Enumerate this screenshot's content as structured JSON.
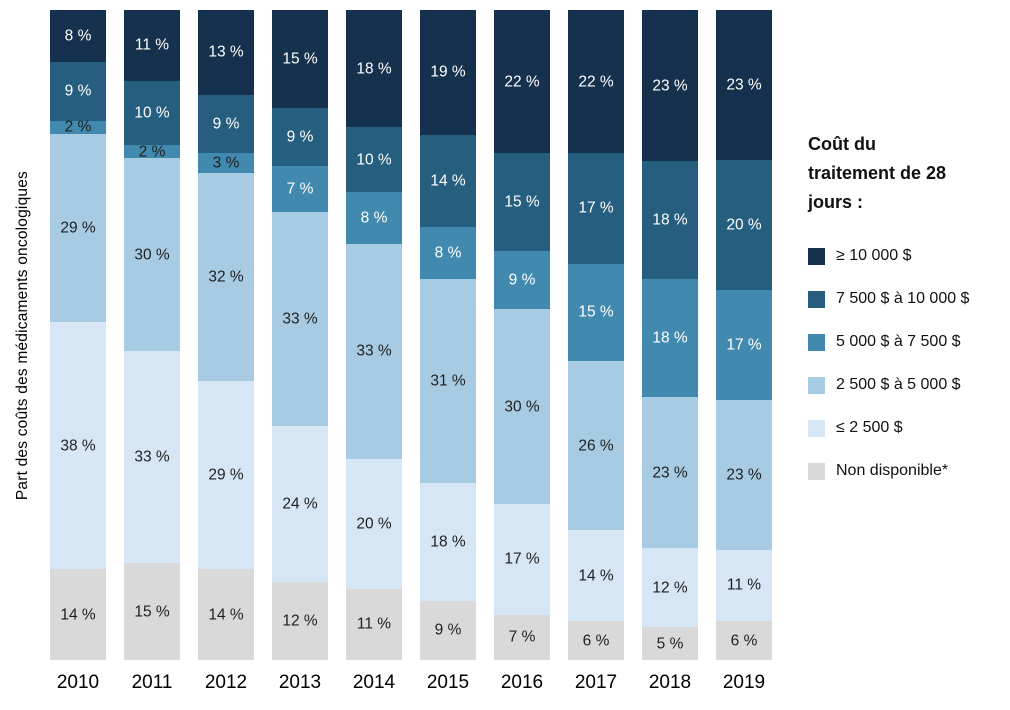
{
  "chart_data": {
    "type": "bar",
    "stacked": true,
    "title": "",
    "ylabel": "Part des coûts des médicaments oncologiques",
    "legend_title": "Coût du traitement de 28 jours :",
    "legend_position": "right",
    "value_suffix": " %",
    "grid": false,
    "ylim": [
      0,
      100
    ],
    "categories": [
      "2010",
      "2011",
      "2012",
      "2013",
      "2014",
      "2015",
      "2016",
      "2017",
      "2018",
      "2019"
    ],
    "series": [
      {
        "name": "≥ 10 000 $",
        "color": "#16314d",
        "label_color": "#ffffff",
        "values": [
          8,
          11,
          13,
          15,
          18,
          19,
          22,
          22,
          23,
          23
        ]
      },
      {
        "name": "7 500 $ à 10 000 $",
        "color": "#255e7e",
        "label_color": "#ffffff",
        "values": [
          9,
          10,
          9,
          9,
          10,
          14,
          15,
          17,
          18,
          20
        ]
      },
      {
        "name": "5 000 $ à 7 500 $",
        "color": "#4189ae",
        "label_color": "#ffffff",
        "values": [
          2,
          2,
          3,
          7,
          8,
          8,
          9,
          15,
          18,
          17
        ]
      },
      {
        "name": "2 500 $ à 5 000 $",
        "color": "#a7cbe2",
        "label_color": "#1f1f1f",
        "values": [
          29,
          30,
          32,
          33,
          33,
          31,
          30,
          26,
          23,
          23
        ]
      },
      {
        "name": "≤ 2 500 $",
        "color": "#d7e6f4",
        "label_color": "#1f1f1f",
        "values": [
          38,
          33,
          29,
          24,
          20,
          18,
          17,
          14,
          12,
          11
        ]
      },
      {
        "name": "Non disponible*",
        "color": "#d9d9d9",
        "label_color": "#1f1f1f",
        "values": [
          14,
          15,
          14,
          12,
          11,
          9,
          7,
          6,
          5,
          6
        ]
      }
    ],
    "dark_label_color": "#1f1f1f",
    "small_label_threshold": 3
  }
}
